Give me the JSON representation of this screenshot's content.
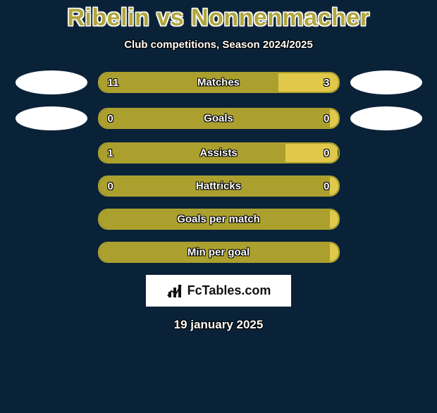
{
  "colors": {
    "background": "#0a2238",
    "primary": "#aba02e",
    "secondary": "#e0c94a",
    "border": "#aba02e",
    "ellipse": "#ffffff",
    "text": "#ffffff",
    "title": "#b1a63c"
  },
  "title": "Ribelin vs Nonnenmacher",
  "subtitle": "Club competitions, Season 2024/2025",
  "rows": [
    {
      "label": "Matches",
      "left": "11",
      "right": "3",
      "leftPct": 75,
      "rightPct": 25,
      "showEllipses": true,
      "showValues": true
    },
    {
      "label": "Goals",
      "left": "0",
      "right": "0",
      "leftPct": 97,
      "rightPct": 3,
      "showEllipses": true,
      "showValues": true
    },
    {
      "label": "Assists",
      "left": "1",
      "right": "0",
      "leftPct": 78,
      "rightPct": 22,
      "showEllipses": false,
      "showValues": true
    },
    {
      "label": "Hattricks",
      "left": "0",
      "right": "0",
      "leftPct": 97,
      "rightPct": 3,
      "showEllipses": false,
      "showValues": true
    },
    {
      "label": "Goals per match",
      "left": "",
      "right": "",
      "leftPct": 97,
      "rightPct": 3,
      "showEllipses": false,
      "showValues": false
    },
    {
      "label": "Min per goal",
      "left": "",
      "right": "",
      "leftPct": 100,
      "rightPct": 0,
      "showEllipses": false,
      "showValues": false
    }
  ],
  "badge": {
    "text1": "Fc",
    "text2": "Tables",
    "text3": ".com"
  },
  "date": "19 january 2025",
  "layout": {
    "barWidthPx": 343,
    "barHeightPx": 30,
    "barRadiusPx": 14,
    "ellipseW": 102,
    "ellipseH": 34,
    "titleFontSize": 34,
    "subtitleFontSize": 15,
    "labelFontSize": 15,
    "dateFontSize": 17
  }
}
